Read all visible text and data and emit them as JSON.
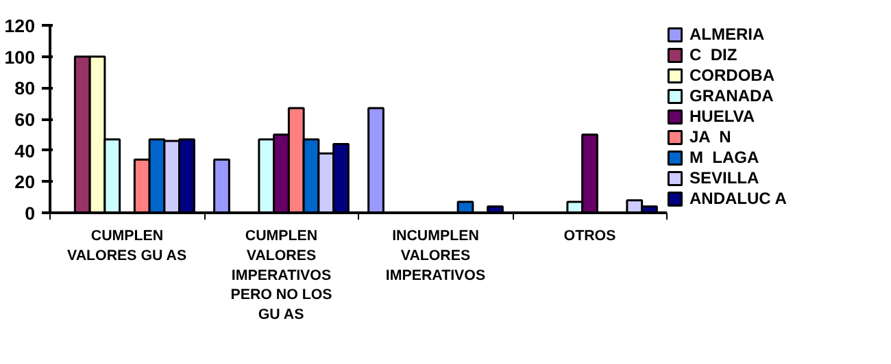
{
  "chart_data": {
    "type": "bar",
    "categories": [
      "CUMPLEN\nVALORES GU AS",
      "CUMPLEN\nVALORES\nIMPERATIVOS\nPERO NO LOS\nGU AS",
      "INCUMPLEN\nVALORES\nIMPERATIVOS",
      "OTROS"
    ],
    "series": [
      {
        "name": "ALMERIA",
        "color": "#9999ff",
        "values": [
          null,
          34,
          67,
          null
        ]
      },
      {
        "name": "C  DIZ",
        "color": "#993366",
        "values": [
          100,
          null,
          null,
          null
        ]
      },
      {
        "name": "CORDOBA",
        "color": "#ffffcc",
        "values": [
          100,
          null,
          null,
          null
        ]
      },
      {
        "name": "GRANADA",
        "color": "#ccffff",
        "values": [
          47,
          47,
          null,
          7
        ]
      },
      {
        "name": "HUELVA",
        "color": "#660066",
        "values": [
          null,
          50,
          null,
          50
        ]
      },
      {
        "name": "JA  N",
        "color": "#ff8080",
        "values": [
          34,
          67,
          null,
          null
        ]
      },
      {
        "name": "M  LAGA",
        "color": "#0066cc",
        "values": [
          47,
          47,
          7,
          null
        ]
      },
      {
        "name": "SEVILLA",
        "color": "#ccccff",
        "values": [
          46,
          38,
          null,
          8
        ]
      },
      {
        "name": "ANDALUC A",
        "color": "#000080",
        "values": [
          47,
          44,
          4,
          4
        ]
      }
    ],
    "ylim": [
      0,
      120
    ],
    "yticks": [
      0,
      20,
      40,
      60,
      80,
      100,
      120
    ],
    "grid": false,
    "legend": "right"
  }
}
